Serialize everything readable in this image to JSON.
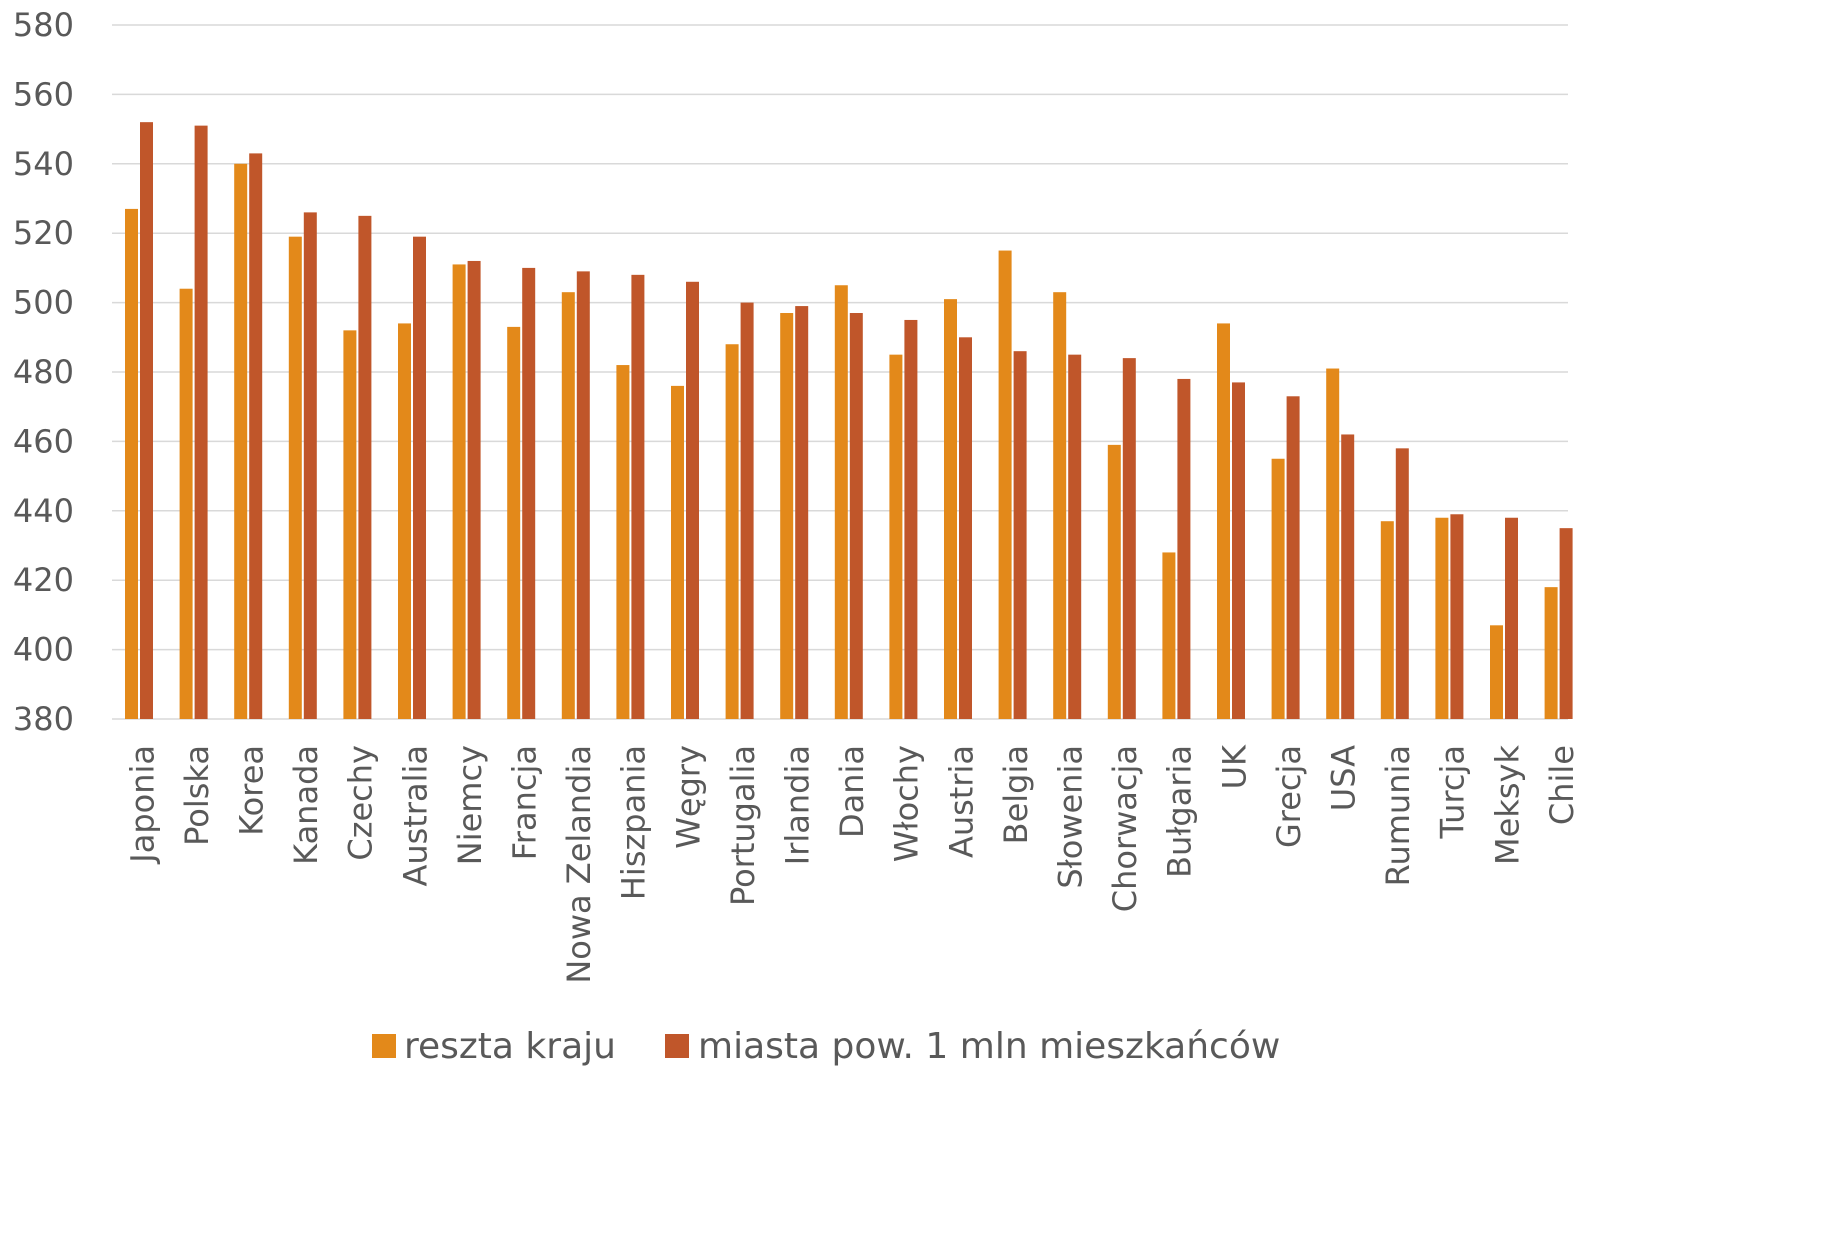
{
  "chart_data": {
    "type": "bar",
    "title": "",
    "xlabel": "",
    "ylabel": "",
    "ylim": [
      380,
      580
    ],
    "yticks": [
      380,
      400,
      420,
      440,
      460,
      480,
      500,
      520,
      540,
      560,
      580
    ],
    "grid": true,
    "legend_position": "bottom",
    "categories": [
      "Japonia",
      "Polska",
      "Korea",
      "Kanada",
      "Czechy",
      "Australia",
      "Niemcy",
      "Francja",
      "Nowa Zelandia",
      "Hiszpania",
      "Węgry",
      "Portugalia",
      "Irlandia",
      "Dania",
      "Włochy",
      "Austria",
      "Belgia",
      "Słowenia",
      "Chorwacja",
      "Bułgaria",
      "UK",
      "Grecja",
      "USA",
      "Rumunia",
      "Turcja",
      "Meksyk",
      "Chile"
    ],
    "series": [
      {
        "name": "reszta kraju",
        "color": "#e3891a",
        "values": [
          527,
          504,
          540,
          519,
          492,
          494,
          511,
          493,
          503,
          482,
          476,
          488,
          497,
          505,
          485,
          501,
          515,
          503,
          459,
          428,
          494,
          455,
          481,
          437,
          438,
          407,
          418
        ]
      },
      {
        "name": "miasta pow. 1 mln mieszkańców",
        "color": "#c0562a",
        "values": [
          552,
          551,
          543,
          526,
          525,
          519,
          512,
          510,
          509,
          508,
          506,
          500,
          499,
          497,
          495,
          490,
          486,
          485,
          484,
          478,
          477,
          473,
          462,
          458,
          439,
          438,
          435
        ]
      }
    ]
  }
}
